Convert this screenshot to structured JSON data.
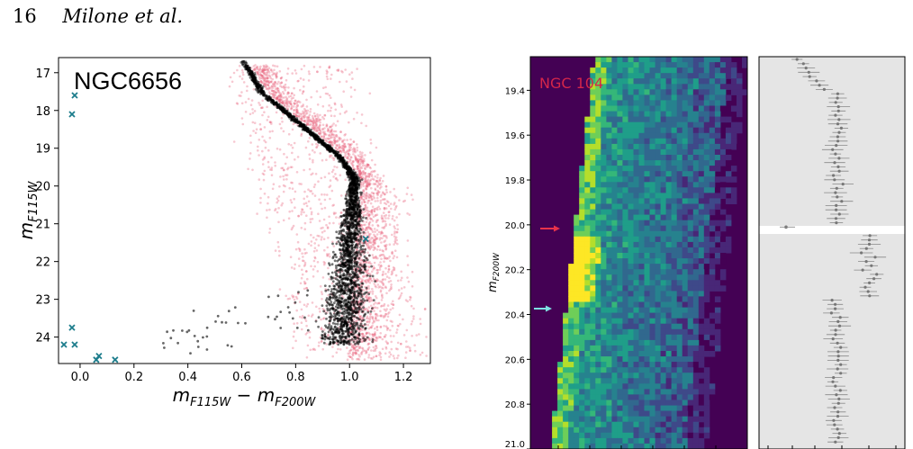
{
  "header": {
    "page_number": "16",
    "authors": "Milone et al."
  },
  "colors": {
    "ms_black": "#000000",
    "field_pink": "#e8607a",
    "cross_teal": "#1d7d8c",
    "map_bg": "#440154",
    "arrow_red": "#e8334a",
    "arrow_cyan": "#7ee3e3",
    "error_bg": "#e5e5e5"
  },
  "chart_data": [
    {
      "type": "scatter",
      "title": "NGC6656",
      "xlabel": "m_F115W − m_F200W",
      "ylabel": "m_F115W",
      "xlim": [
        -0.08,
        1.3
      ],
      "ylim": [
        24.7,
        16.6
      ],
      "y_inverted": true,
      "xticks": [
        "0.0",
        "0.2",
        "0.4",
        "0.6",
        "0.8",
        "1.0",
        "1.2"
      ],
      "yticks": [
        "17",
        "18",
        "19",
        "20",
        "21",
        "22",
        "23",
        "24"
      ],
      "series": [
        {
          "marker": "dot",
          "color": "black",
          "desc": "cluster stars"
        },
        {
          "marker": "dot",
          "color": "pink",
          "desc": "field stars"
        },
        {
          "marker": "x",
          "color": "teal",
          "points": [
            [
              -0.02,
              17.6
            ],
            [
              -0.03,
              18.1
            ],
            [
              -0.03,
              23.75
            ],
            [
              -0.06,
              24.2
            ],
            [
              -0.02,
              24.2
            ],
            [
              0.06,
              24.6
            ],
            [
              0.07,
              24.5
            ],
            [
              0.13,
              24.6
            ],
            [
              1.06,
              21.4
            ]
          ]
        }
      ]
    },
    {
      "type": "heatmap",
      "title": "NGC 104",
      "ylabel": "m_F200W",
      "ylim": [
        21.0,
        19.25
      ],
      "yticks": [
        "19.4",
        "19.6",
        "19.8",
        "20.0",
        "20.2",
        "20.4",
        "20.6",
        "20.8",
        "21.0"
      ],
      "arrows": [
        {
          "color": "red",
          "y": 20.03
        },
        {
          "color": "cyan",
          "y": 20.36
        }
      ]
    },
    {
      "type": "errorbar",
      "desc": "side panel with binned measurements and error bars; gap near m_F200W = 20.03"
    }
  ]
}
